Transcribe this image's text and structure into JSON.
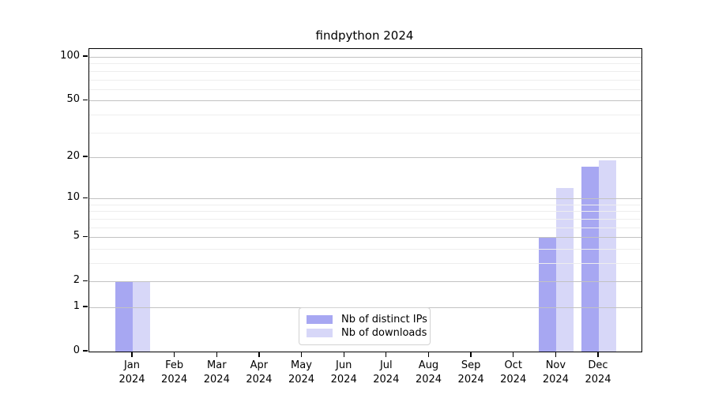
{
  "chart_data": {
    "type": "bar",
    "title": "findpython 2024",
    "categories": [
      "Jan",
      "Feb",
      "Mar",
      "Apr",
      "May",
      "Jun",
      "Jul",
      "Aug",
      "Sep",
      "Oct",
      "Nov",
      "Dec"
    ],
    "xtick_second_line": "2024",
    "series": [
      {
        "name": "Nb of distinct IPs",
        "color": "#a7a7f2",
        "values": [
          2,
          0,
          0,
          0,
          0,
          0,
          0,
          0,
          0,
          0,
          5,
          17
        ]
      },
      {
        "name": "Nb of downloads",
        "color": "#d7d7f8",
        "values": [
          2,
          0,
          0,
          0,
          0,
          0,
          0,
          0,
          0,
          0,
          12,
          19
        ]
      }
    ],
    "yscale": "log1p",
    "ylim": [
      0,
      113
    ],
    "ytick_values": [
      0,
      1,
      2,
      5,
      10,
      20,
      50,
      100
    ],
    "ytick_labels": [
      "0",
      "1",
      "2",
      "5",
      "10",
      "20",
      "50",
      "100"
    ],
    "minor_gridline_values": [
      3,
      4,
      6,
      7,
      8,
      9,
      30,
      40,
      60,
      70,
      80,
      90
    ],
    "grid": "horizontal, major and minor, behind-translucent-bars",
    "legend_position": "lower center",
    "colors": {
      "major_grid": "#c2c2c2",
      "minor_grid": "#eeeeee",
      "spine": "#000000",
      "legend_border": "#d2d2d2",
      "background": "#ffffff"
    }
  }
}
